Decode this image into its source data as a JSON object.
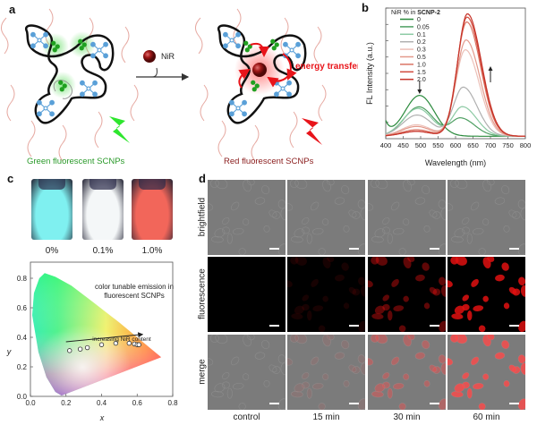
{
  "panels": {
    "a": "a",
    "b": "b",
    "c": "c",
    "d": "d"
  },
  "panel_a": {
    "reagent": "NiR",
    "energy_transfer": "energy transfer",
    "left_caption": "Green fluorescent SCNPs",
    "right_caption": "Red fluorescent SCNPs",
    "colors": {
      "green": "#1fbf1f",
      "red": "#e8141a",
      "molecule": "#5aa0d8",
      "chain": "#111111"
    }
  },
  "chart_data": [
    {
      "type": "line",
      "panel": "b",
      "xlabel": "Wavelength (nm)",
      "ylabel": "FL Intensity (a.u.)",
      "xlim": [
        400,
        800
      ],
      "xticks": [
        400,
        450,
        500,
        550,
        600,
        650,
        700,
        750,
        800
      ],
      "ylim": [
        0,
        0.8
      ],
      "legend_title_prefix": "NiR % in",
      "legend_title_bold": "SCNP-2",
      "legend_placement": "top-left",
      "series": [
        {
          "name": "0",
          "color": "#2a8a3c",
          "green_peak": {
            "x": 497,
            "y": 0.25
          },
          "red_peak": {
            "x": 615,
            "y": 0.0
          }
        },
        {
          "name": "0.05",
          "color": "#4e9f62",
          "green_peak": {
            "x": 495,
            "y": 0.18
          },
          "red_peak": {
            "x": 615,
            "y": 0.11
          }
        },
        {
          "name": "0.1",
          "color": "#8ccaa4",
          "green_peak": {
            "x": 492,
            "y": 0.17
          },
          "red_peak": {
            "x": 620,
            "y": 0.18
          }
        },
        {
          "name": "0.2",
          "color": "#b0b0b0",
          "green_peak": {
            "x": 490,
            "y": 0.13
          },
          "red_peak": {
            "x": 622,
            "y": 0.3
          }
        },
        {
          "name": "0.3",
          "color": "#ecc0b8",
          "green_peak": {
            "x": 488,
            "y": 0.07
          },
          "red_peak": {
            "x": 628,
            "y": 0.53
          }
        },
        {
          "name": "0.5",
          "color": "#e39a8c",
          "green_peak": {
            "x": 488,
            "y": 0.06
          },
          "red_peak": {
            "x": 630,
            "y": 0.59
          }
        },
        {
          "name": "1.0",
          "color": "#da7464",
          "green_peak": {
            "x": 488,
            "y": 0.04
          },
          "red_peak": {
            "x": 632,
            "y": 0.7
          }
        },
        {
          "name": "1.5",
          "color": "#d24c3e",
          "green_peak": {
            "x": 488,
            "y": 0.03
          },
          "red_peak": {
            "x": 633,
            "y": 0.73
          }
        },
        {
          "name": "2.0",
          "color": "#c6342a",
          "green_peak": {
            "x": 488,
            "y": 0.03
          },
          "red_peak": {
            "x": 634,
            "y": 0.75
          }
        }
      ],
      "annotations": {
        "down_arrow_at_nm": 497,
        "up_arrow_at_nm": 700
      }
    },
    {
      "type": "scatter",
      "panel": "c",
      "xlabel": "x",
      "ylabel": "y",
      "xlim": [
        0.0,
        0.8
      ],
      "ylim": [
        0.0,
        0.8
      ],
      "xticks": [
        "0.0",
        "0.2",
        "0.4",
        "0.6",
        "0.8"
      ],
      "yticks": [
        "0.0",
        "0.2",
        "0.4",
        "0.6",
        "0.8"
      ],
      "title": "color tunable emission in fluorescent SCNPs",
      "annotation": "increasing NiR content",
      "points": [
        {
          "x": 0.22,
          "y": 0.31
        },
        {
          "x": 0.28,
          "y": 0.32
        },
        {
          "x": 0.32,
          "y": 0.33
        },
        {
          "x": 0.4,
          "y": 0.35
        },
        {
          "x": 0.48,
          "y": 0.36
        },
        {
          "x": 0.555,
          "y": 0.36
        },
        {
          "x": 0.585,
          "y": 0.355
        },
        {
          "x": 0.6,
          "y": 0.35
        },
        {
          "x": 0.61,
          "y": 0.35
        }
      ]
    }
  ],
  "panel_c": {
    "title_line1": "color tunable emission in",
    "title_line2": "fluorescent SCNPs",
    "annotation": "increasing NiR content",
    "xlabel": "x",
    "ylabel": "y",
    "vials": [
      {
        "label": "0%",
        "color": "#7ff0f0"
      },
      {
        "label": "0.1%",
        "color": "#f4f7f8"
      },
      {
        "label": "1.0%",
        "color": "#f2665a"
      }
    ]
  },
  "panel_d": {
    "rows": [
      "brightfield",
      "fluorescence",
      "merge"
    ],
    "columns": [
      "control",
      "15 min",
      "30 min",
      "60 min"
    ]
  }
}
